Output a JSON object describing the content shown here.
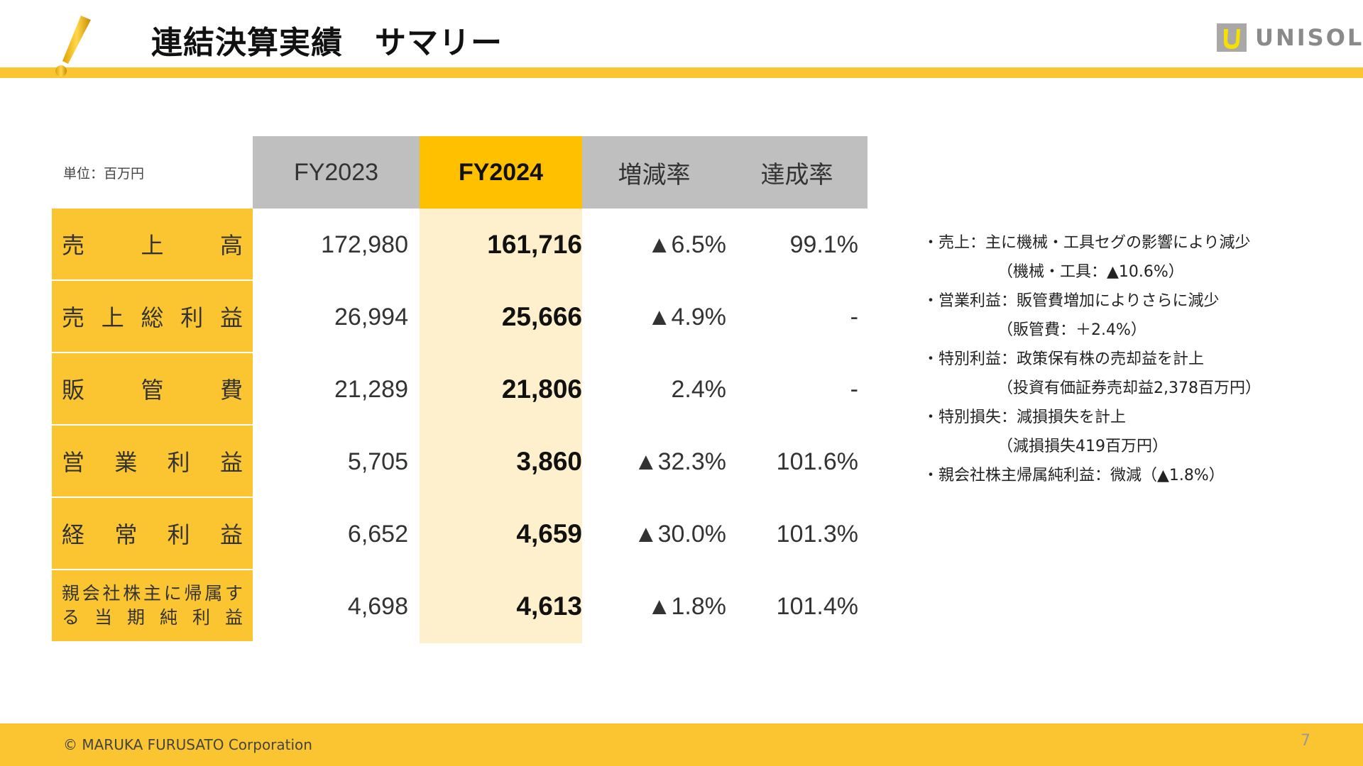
{
  "header": {
    "title": "連結決算実績　サマリー",
    "logo_text": "UNISOL",
    "brand_color": "#FBC531"
  },
  "table": {
    "unit": "単位：百万円",
    "columns": [
      "FY2023",
      "FY2024",
      "増減率",
      "達成率"
    ],
    "rows": [
      {
        "label": "売上高",
        "fy2023": "172,980",
        "fy2024": "161,716",
        "change": "▲6.5%",
        "achievement": "99.1%"
      },
      {
        "label": "売上総利益",
        "fy2023": "26,994",
        "fy2024": "25,666",
        "change": "▲4.9%",
        "achievement": "-"
      },
      {
        "label": "販管費",
        "fy2023": "21,289",
        "fy2024": "21,806",
        "change": "2.4%",
        "achievement": "-"
      },
      {
        "label": "営業利益",
        "fy2023": "5,705",
        "fy2024": "3,860",
        "change": "▲32.3%",
        "achievement": "101.6%"
      },
      {
        "label": "経常利益",
        "fy2023": "6,652",
        "fy2024": "4,659",
        "change": "▲30.0%",
        "achievement": "101.3%"
      },
      {
        "label": "親会社株主に帰属する当期純利益",
        "label_line1": "親会社株主に帰属す",
        "label_line2": "る当期純利益",
        "fy2023": "4,698",
        "fy2024": "4,613",
        "change": "▲1.8%",
        "achievement": "101.4%"
      }
    ]
  },
  "notes": [
    "・売上：主に機械・工具セグの影響により減少",
    "（機械・工具：▲10.6%）",
    "・営業利益：販管費増加によりさらに減少",
    "（販管費：＋2.4%）",
    "・特別利益：政策保有株の売却益を計上",
    "（投資有価証券売却益2,378百万円）",
    "・特別損失：減損損失を計上",
    "（減損損失419百万円）",
    "・親会社株主帰属純利益：微減（▲1.8%）"
  ],
  "footer": {
    "copyright": "© MARUKA FURUSATO Corporation",
    "page": "7"
  }
}
